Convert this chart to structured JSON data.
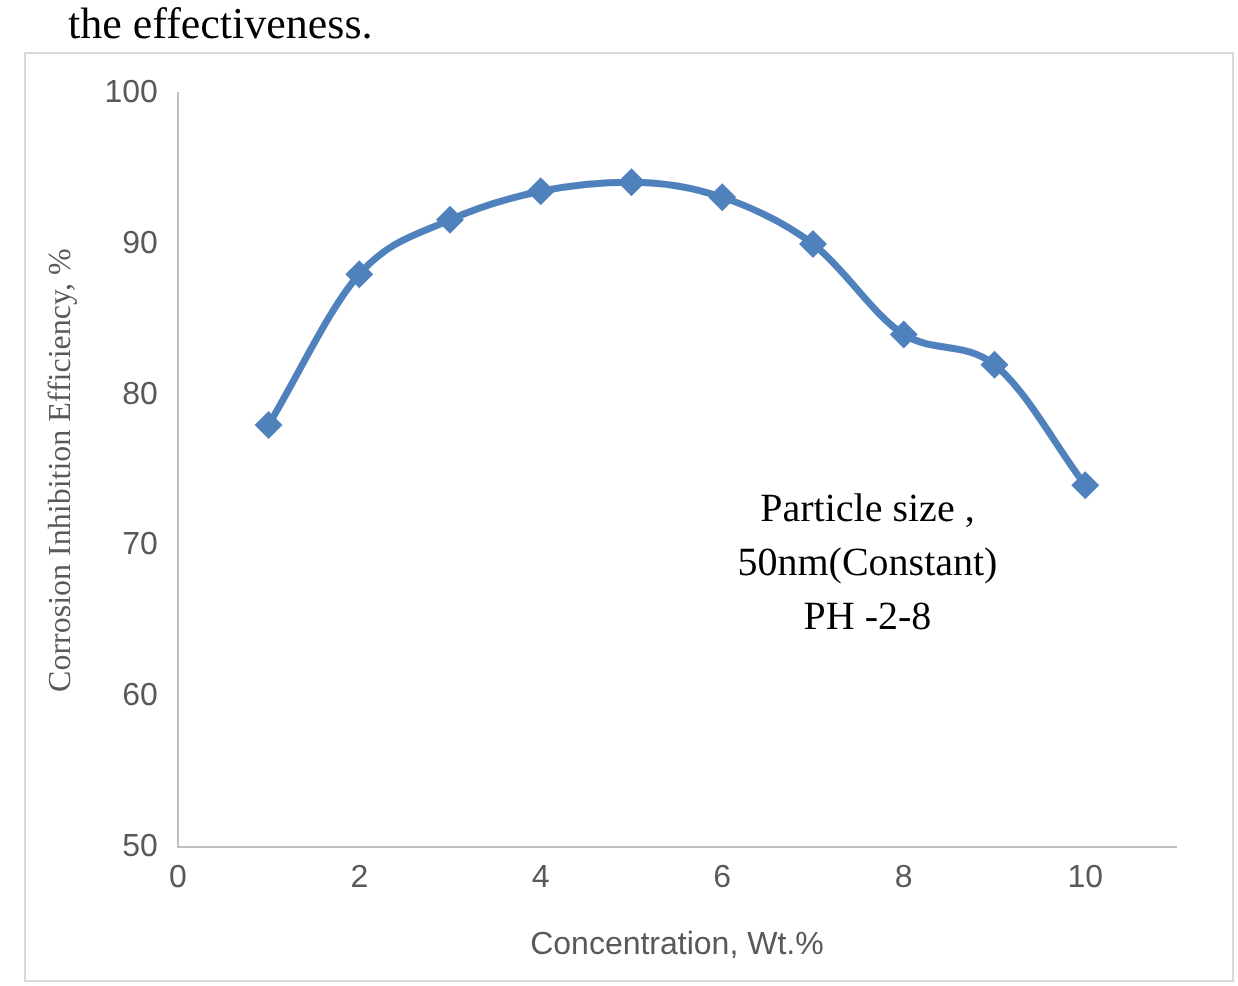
{
  "chart_data": {
    "type": "line",
    "xlabel": "Concentration, Wt.%",
    "ylabel": "Corrosion Inhibition Efficiency, %",
    "annotations": [
      "the effectiveness.",
      "Particle size ,\n50nm(Constant)\nPH -2-8"
    ],
    "x": [
      1,
      2,
      3,
      4,
      5,
      6,
      7,
      8,
      9,
      10
    ],
    "series": [
      {
        "color": "#4f81bd",
        "values": [
          78,
          88,
          91.6,
          93.5,
          94.1,
          93.1,
          90,
          84,
          82,
          74
        ]
      }
    ],
    "xlim": [
      0,
      11
    ],
    "xticks": [
      0,
      2,
      4,
      6,
      8,
      10
    ],
    "ylim": [
      50,
      100
    ],
    "yticks": [
      50,
      60,
      70,
      80,
      90,
      100
    ],
    "grid": false,
    "legend": false,
    "marker": "diamond",
    "line_style": "solid"
  }
}
